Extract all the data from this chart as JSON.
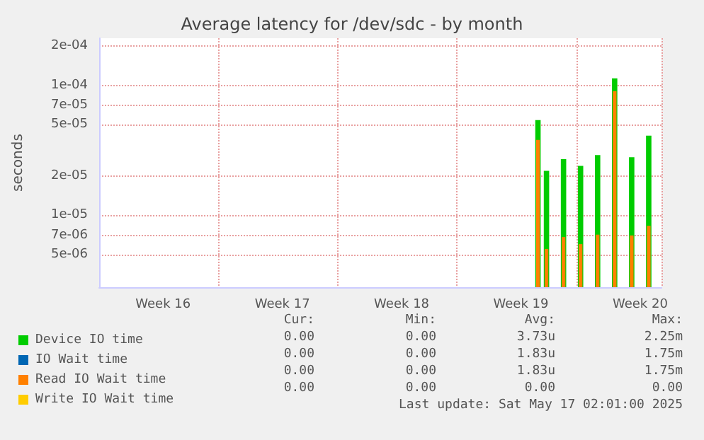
{
  "chart_data": {
    "type": "bar",
    "title": "Average latency for /dev/sdc - by month",
    "ylabel": "seconds",
    "log": "y",
    "categories": [
      null,
      null,
      null,
      null,
      null,
      null,
      null,
      "Week 16",
      null,
      null,
      null,
      null,
      null,
      null,
      null,
      null,
      null,
      null,
      null,
      null,
      null,
      "Week 17",
      null,
      null,
      null,
      null,
      null,
      null,
      null,
      null,
      null,
      null,
      null,
      null,
      null,
      "Week 18",
      null,
      null,
      null,
      null,
      null,
      null,
      null,
      null,
      null,
      null,
      null,
      null,
      null,
      "Week 19",
      null,
      null,
      null,
      null,
      null,
      null,
      null,
      null,
      null,
      null,
      null,
      null,
      null,
      "Week 20",
      null,
      null
    ],
    "series": [
      {
        "name": "Device IO time",
        "color": "#00cc00",
        "values": [
          null,
          null,
          null,
          null,
          null,
          null,
          null,
          null,
          null,
          null,
          null,
          null,
          null,
          null,
          null,
          null,
          null,
          null,
          null,
          null,
          null,
          null,
          null,
          null,
          null,
          null,
          null,
          null,
          null,
          null,
          null,
          null,
          null,
          null,
          null,
          null,
          null,
          null,
          null,
          null,
          null,
          null,
          null,
          null,
          null,
          null,
          null,
          null,
          null,
          null,
          null,
          5.4e-05,
          2.2e-05,
          null,
          2.7e-05,
          null,
          2.4e-05,
          null,
          2.9e-05,
          null,
          0.000113,
          null,
          2.8e-05,
          null,
          4.1e-05,
          null
        ]
      },
      {
        "name": "IO Wait time",
        "color": "#0066b3",
        "values": [
          null,
          null,
          null,
          null,
          null,
          null,
          null,
          null,
          null,
          null,
          null,
          null,
          null,
          null,
          null,
          null,
          null,
          null,
          null,
          null,
          null,
          null,
          null,
          null,
          null,
          null,
          null,
          null,
          null,
          null,
          null,
          null,
          null,
          null,
          null,
          null,
          null,
          null,
          null,
          null,
          null,
          null,
          null,
          null,
          null,
          null,
          null,
          null,
          null,
          null,
          null,
          null,
          null,
          null,
          null,
          null,
          null,
          null,
          null,
          null,
          null,
          null,
          null,
          null,
          null,
          null
        ]
      },
      {
        "name": "Read IO Wait time",
        "color": "#ff8000",
        "values": [
          null,
          null,
          null,
          null,
          null,
          null,
          null,
          null,
          null,
          null,
          null,
          null,
          null,
          null,
          null,
          null,
          null,
          null,
          null,
          null,
          null,
          null,
          null,
          null,
          null,
          null,
          null,
          null,
          null,
          null,
          null,
          null,
          null,
          null,
          null,
          null,
          null,
          null,
          null,
          null,
          null,
          null,
          null,
          null,
          null,
          null,
          null,
          null,
          null,
          null,
          null,
          3.8e-05,
          5.5e-06,
          null,
          6.8e-06,
          null,
          6e-06,
          null,
          7.1e-06,
          null,
          9e-05,
          null,
          7e-06,
          null,
          8.3e-06,
          null
        ]
      },
      {
        "name": "Write IO Wait time",
        "color": "#ffcc00",
        "values": [
          null,
          null,
          null,
          null,
          null,
          null,
          null,
          null,
          null,
          null,
          null,
          null,
          null,
          null,
          null,
          null,
          null,
          null,
          null,
          null,
          null,
          null,
          null,
          null,
          null,
          null,
          null,
          null,
          null,
          null,
          null,
          null,
          null,
          null,
          null,
          null,
          null,
          null,
          null,
          null,
          null,
          null,
          null,
          null,
          null,
          null,
          null,
          null,
          null,
          null,
          null,
          null,
          null,
          null,
          null,
          null,
          null,
          null,
          null,
          null,
          null,
          null,
          null,
          null,
          null,
          null
        ]
      }
    ],
    "ylim": [
      2.8e-06,
      0.00023
    ],
    "yticks": [
      {
        "value": 5e-06,
        "label": "5e-06"
      },
      {
        "value": 7e-06,
        "label": "7e-06"
      },
      {
        "value": 1e-05,
        "label": "1e-05"
      },
      {
        "value": 2e-05,
        "label": "2e-05"
      },
      {
        "value": 5e-05,
        "label": "5e-05"
      },
      {
        "value": 7e-05,
        "label": "7e-05"
      },
      {
        "value": 0.0001,
        "label": "1e-04"
      },
      {
        "value": 0.0002,
        "label": "2e-04"
      }
    ],
    "grid": true,
    "legend": "bottom left",
    "annotations": [
      "Cur:",
      "Min:",
      "Avg:",
      "Max:",
      "0.00",
      "0.00",
      "3.73u",
      "2.25m",
      "0.00",
      "0.00",
      "1.83u",
      "1.75m",
      "0.00",
      "0.00",
      "1.83u",
      "1.75m",
      "0.00",
      "0.00",
      "0.00",
      "0.00",
      "Last update: Sat May 17 02:01:00 2025"
    ]
  }
}
